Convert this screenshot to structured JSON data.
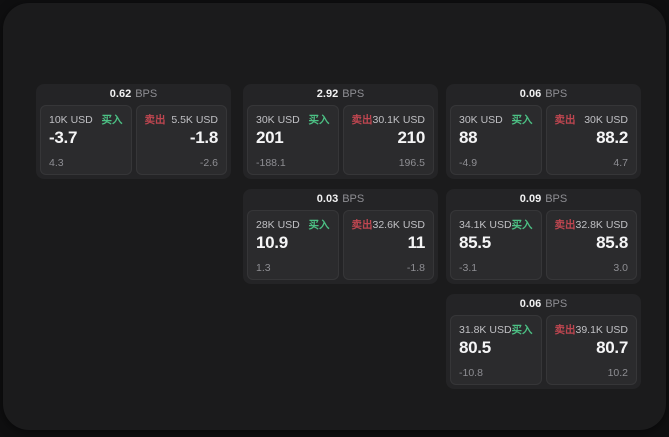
{
  "labels": {
    "bps": "BPS",
    "buy": "买入",
    "sell": "卖出"
  },
  "colors": {
    "background_outer": "#0f0f10",
    "background_panel": "#1b1b1c",
    "card_background": "#242426",
    "subpanel_background": "#2b2b2d",
    "buy_green": "#4cc084",
    "sell_red": "#bf4650",
    "text_primary": "#f5f5f6",
    "text_dim": "#8e8e93"
  },
  "cards": [
    {
      "bps": "0.62",
      "buy": {
        "amount": "10K USD",
        "value": "-3.7",
        "delta": "4.3"
      },
      "sell": {
        "amount": "5.5K USD",
        "value": "-1.8",
        "delta": "-2.6"
      }
    },
    {
      "bps": "2.92",
      "buy": {
        "amount": "30K USD",
        "value": "201",
        "delta": "-188.1"
      },
      "sell": {
        "amount": "30.1K USD",
        "value": "210",
        "delta": "196.5"
      }
    },
    {
      "bps": "0.06",
      "buy": {
        "amount": "30K USD",
        "value": "88",
        "delta": "-4.9"
      },
      "sell": {
        "amount": "30K USD",
        "value": "88.2",
        "delta": "4.7"
      }
    },
    {
      "bps": "0.03",
      "buy": {
        "amount": "28K USD",
        "value": "10.9",
        "delta": "1.3"
      },
      "sell": {
        "amount": "32.6K USD",
        "value": "11",
        "delta": "-1.8"
      }
    },
    {
      "bps": "0.09",
      "buy": {
        "amount": "34.1K USD",
        "value": "85.5",
        "delta": "-3.1"
      },
      "sell": {
        "amount": "32.8K USD",
        "value": "85.8",
        "delta": "3.0"
      }
    },
    {
      "bps": "0.06",
      "buy": {
        "amount": "31.8K USD",
        "value": "80.5",
        "delta": "-10.8"
      },
      "sell": {
        "amount": "39.1K USD",
        "value": "80.7",
        "delta": "10.2"
      }
    }
  ]
}
